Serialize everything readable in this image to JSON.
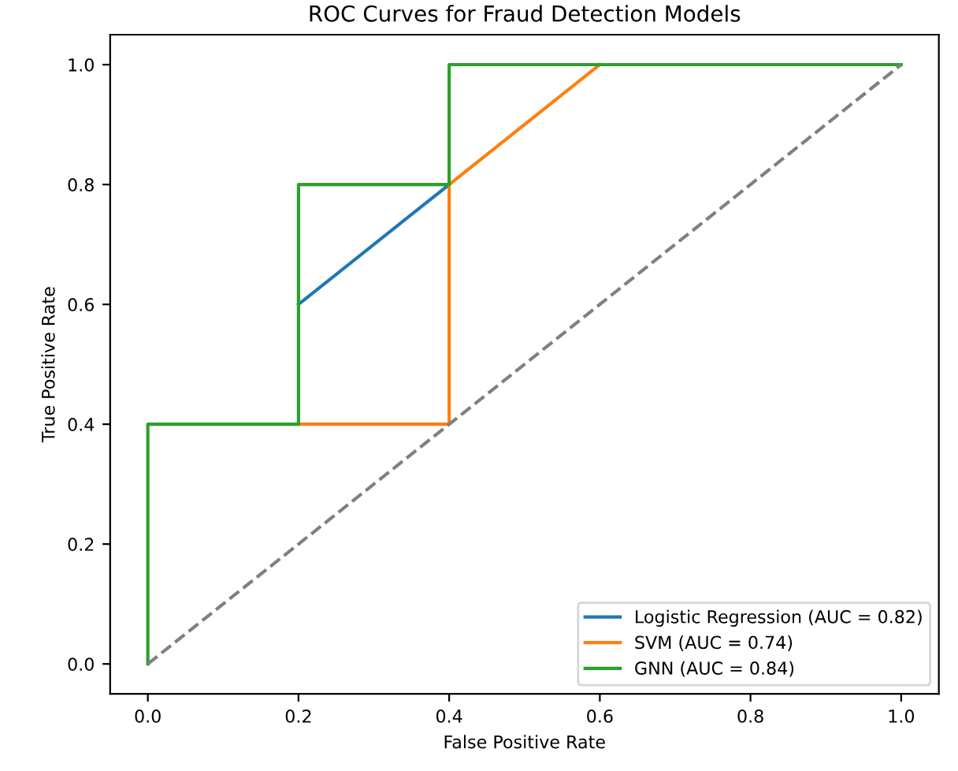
{
  "chart_data": {
    "type": "line",
    "title": "ROC Curves for Fraud Detection Models",
    "xlabel": "False Positive Rate",
    "ylabel": "True Positive Rate",
    "xlim": [
      -0.05,
      1.05
    ],
    "ylim": [
      -0.05,
      1.05
    ],
    "xticks": [
      {
        "value": 0,
        "label": "0.0"
      },
      0.2,
      0.4,
      0.6,
      0.8,
      {
        "value": 1,
        "label": "1.0"
      }
    ],
    "yticks": [
      {
        "value": 0,
        "label": "0.0"
      },
      0.2,
      0.4,
      0.6,
      0.8,
      {
        "value": 1,
        "label": "1.0"
      }
    ],
    "series": [
      {
        "name": "Logistic Regression (AUC = 0.82)",
        "color": "#1f77b4",
        "x": [
          0.2,
          0.4
        ],
        "values": [
          0.6,
          0.8
        ]
      },
      {
        "name": "SVM (AUC = 0.74)",
        "color": "#ff7f0e",
        "x": [
          0.2,
          0.4,
          0.4,
          0.6
        ],
        "values": [
          0.4,
          0.4,
          0.8,
          1.0
        ]
      },
      {
        "name": "GNN (AUC = 0.84)",
        "color": "#2ca02c",
        "x": [
          0.0,
          0.0,
          0.2,
          0.2,
          0.4,
          0.4,
          1.0
        ],
        "values": [
          0.0,
          0.4,
          0.4,
          0.8,
          0.8,
          1.0,
          1.0
        ]
      },
      {
        "color": "#808080",
        "line_style": "dashed",
        "x": [
          0.0,
          1.0
        ],
        "values": [
          0.0,
          1.0
        ]
      }
    ],
    "legend": "bottom right",
    "grid": false
  }
}
